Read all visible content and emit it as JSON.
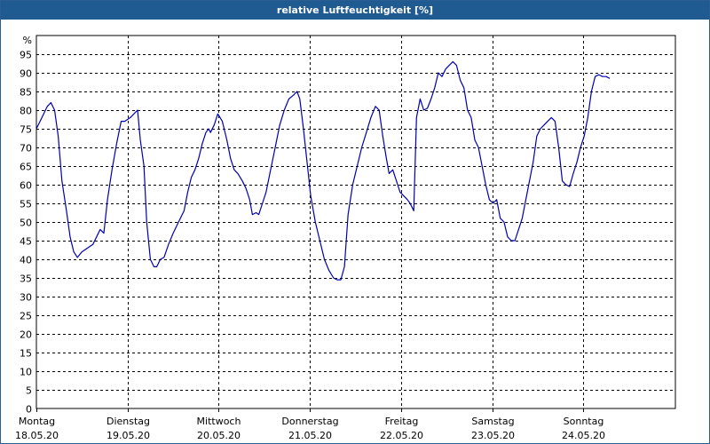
{
  "title": "relative Luftfeuchtigkeit [%]",
  "colors": {
    "titlebar": "#1f5b91",
    "line": "#0000b0",
    "grid": "#000000"
  },
  "chart_data": {
    "type": "line",
    "title": "relative Luftfeuchtigkeit [%]",
    "ylabel": "%",
    "xlabel": "",
    "ylim": [
      0,
      100
    ],
    "yticks": [
      0,
      5,
      10,
      15,
      20,
      25,
      30,
      35,
      40,
      45,
      50,
      55,
      60,
      65,
      70,
      75,
      80,
      85,
      90,
      95
    ],
    "xlim_days": [
      0,
      7
    ],
    "x_ticks": [
      {
        "day": "Montag",
        "date": "18.05.20"
      },
      {
        "day": "Dienstag",
        "date": "19.05.20"
      },
      {
        "day": "Mittwoch",
        "date": "20.05.20"
      },
      {
        "day": "Donnerstag",
        "date": "21.05.20"
      },
      {
        "day": "Freitag",
        "date": "22.05.20"
      },
      {
        "day": "Samstag",
        "date": "23.05.20"
      },
      {
        "day": "Sonntag",
        "date": "24.05.20"
      }
    ],
    "grid": true,
    "series": [
      {
        "values": [
          [
            0.0,
            75
          ],
          [
            0.06,
            78
          ],
          [
            0.12,
            81
          ],
          [
            0.16,
            82
          ],
          [
            0.2,
            80
          ],
          [
            0.24,
            73
          ],
          [
            0.28,
            61
          ],
          [
            0.33,
            53
          ],
          [
            0.37,
            46
          ],
          [
            0.41,
            42
          ],
          [
            0.45,
            40.5
          ],
          [
            0.5,
            42
          ],
          [
            0.56,
            43
          ],
          [
            0.62,
            44
          ],
          [
            0.66,
            46
          ],
          [
            0.7,
            48
          ],
          [
            0.74,
            47
          ],
          [
            0.78,
            56
          ],
          [
            0.83,
            64
          ],
          [
            0.88,
            71
          ],
          [
            0.93,
            77
          ],
          [
            0.97,
            77
          ],
          [
            1.03,
            78
          ],
          [
            1.07,
            79
          ],
          [
            1.11,
            80
          ],
          [
            1.14,
            72
          ],
          [
            1.18,
            65
          ],
          [
            1.21,
            50
          ],
          [
            1.25,
            40
          ],
          [
            1.29,
            38
          ],
          [
            1.32,
            38
          ],
          [
            1.36,
            40
          ],
          [
            1.4,
            40.5
          ],
          [
            1.45,
            44
          ],
          [
            1.5,
            47
          ],
          [
            1.56,
            50
          ],
          [
            1.62,
            53
          ],
          [
            1.66,
            58
          ],
          [
            1.7,
            62
          ],
          [
            1.74,
            64
          ],
          [
            1.78,
            67
          ],
          [
            1.82,
            71
          ],
          [
            1.86,
            74
          ],
          [
            1.89,
            75
          ],
          [
            1.91,
            74
          ],
          [
            1.95,
            76
          ],
          [
            1.99,
            79
          ],
          [
            2.04,
            77
          ],
          [
            2.09,
            72
          ],
          [
            2.13,
            67
          ],
          [
            2.17,
            64
          ],
          [
            2.21,
            63
          ],
          [
            2.26,
            61
          ],
          [
            2.3,
            59
          ],
          [
            2.34,
            56
          ],
          [
            2.37,
            52
          ],
          [
            2.41,
            52.5
          ],
          [
            2.44,
            52
          ],
          [
            2.48,
            55
          ],
          [
            2.52,
            58
          ],
          [
            2.57,
            64
          ],
          [
            2.62,
            70
          ],
          [
            2.67,
            76
          ],
          [
            2.72,
            80
          ],
          [
            2.77,
            83
          ],
          [
            2.82,
            84
          ],
          [
            2.86,
            85
          ],
          [
            2.89,
            83
          ],
          [
            2.93,
            75
          ],
          [
            2.97,
            66
          ],
          [
            3.01,
            57
          ],
          [
            3.06,
            50
          ],
          [
            3.11,
            45
          ],
          [
            3.16,
            40
          ],
          [
            3.21,
            37
          ],
          [
            3.26,
            35
          ],
          [
            3.3,
            34.5
          ],
          [
            3.34,
            34.5
          ],
          [
            3.38,
            38
          ],
          [
            3.42,
            52
          ],
          [
            3.47,
            60
          ],
          [
            3.52,
            65
          ],
          [
            3.57,
            70
          ],
          [
            3.62,
            74
          ],
          [
            3.67,
            78
          ],
          [
            3.72,
            81
          ],
          [
            3.76,
            80
          ],
          [
            3.8,
            73
          ],
          [
            3.84,
            67
          ],
          [
            3.87,
            63
          ],
          [
            3.91,
            64
          ],
          [
            3.95,
            61
          ],
          [
            3.99,
            58
          ],
          [
            4.03,
            57
          ],
          [
            4.07,
            56
          ],
          [
            4.1,
            55
          ],
          [
            4.14,
            53
          ],
          [
            4.17,
            78
          ],
          [
            4.21,
            83
          ],
          [
            4.25,
            80
          ],
          [
            4.29,
            80.5
          ],
          [
            4.33,
            83
          ],
          [
            4.37,
            86
          ],
          [
            4.41,
            90
          ],
          [
            4.45,
            89
          ],
          [
            4.49,
            91
          ],
          [
            4.53,
            92
          ],
          [
            4.57,
            93
          ],
          [
            4.61,
            92
          ],
          [
            4.65,
            88
          ],
          [
            4.69,
            86
          ],
          [
            4.73,
            80
          ],
          [
            4.77,
            78
          ],
          [
            4.81,
            72
          ],
          [
            4.85,
            70
          ],
          [
            4.89,
            65
          ],
          [
            4.93,
            60
          ],
          [
            4.97,
            56
          ],
          [
            5.01,
            55
          ],
          [
            5.05,
            56
          ],
          [
            5.09,
            51
          ],
          [
            5.13,
            50
          ],
          [
            5.17,
            46
          ],
          [
            5.21,
            45
          ],
          [
            5.25,
            45
          ],
          [
            5.29,
            48
          ],
          [
            5.33,
            51
          ],
          [
            5.37,
            56
          ],
          [
            5.41,
            61
          ],
          [
            5.45,
            66
          ],
          [
            5.49,
            73
          ],
          [
            5.53,
            75
          ],
          [
            5.57,
            76
          ],
          [
            5.61,
            77
          ],
          [
            5.65,
            78
          ],
          [
            5.69,
            77
          ],
          [
            5.73,
            70
          ],
          [
            5.77,
            61
          ],
          [
            5.81,
            60
          ],
          [
            5.85,
            59.5
          ],
          [
            5.89,
            63
          ],
          [
            5.93,
            66
          ],
          [
            5.97,
            70
          ],
          [
            6.01,
            73
          ],
          [
            6.05,
            78
          ],
          [
            6.09,
            85
          ],
          [
            6.13,
            89
          ],
          [
            6.17,
            89.5
          ],
          [
            6.21,
            89
          ],
          [
            6.25,
            89
          ],
          [
            6.29,
            88.5
          ]
        ]
      }
    ]
  }
}
